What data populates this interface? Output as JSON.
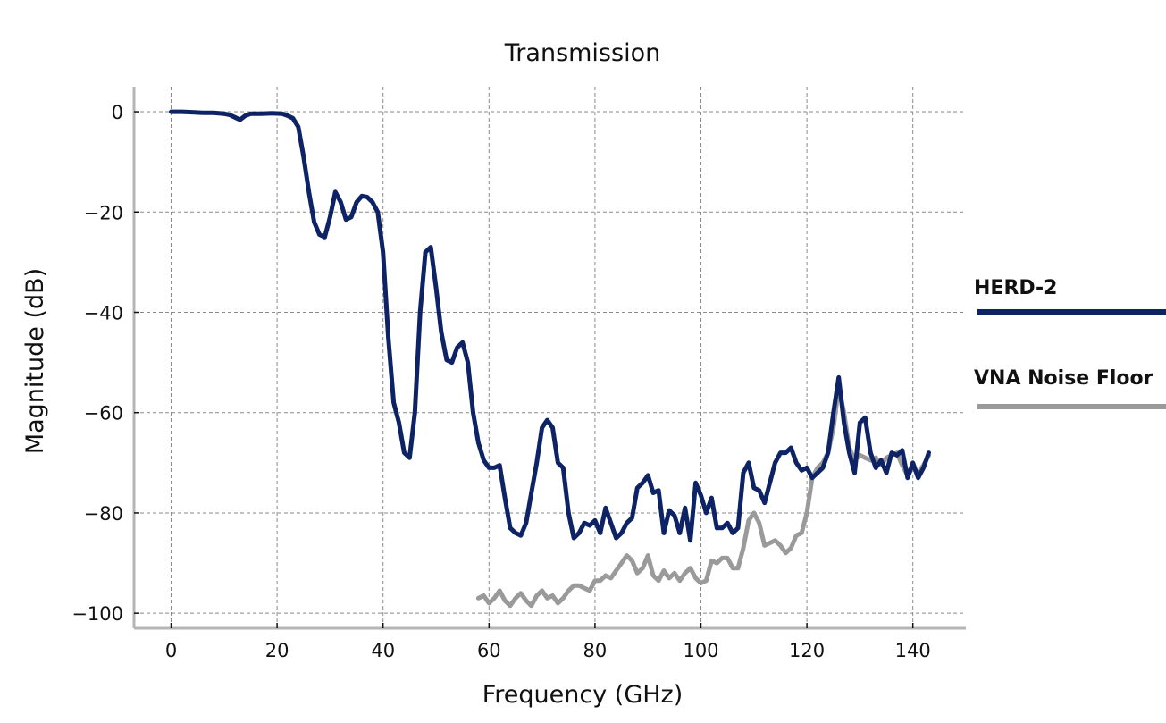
{
  "chart_data": {
    "type": "line",
    "title": "Transmission",
    "xlabel": "Frequency (GHz)",
    "ylabel": "Magnitude (dB)",
    "xlim": [
      -7,
      150
    ],
    "ylim": [
      -103,
      5
    ],
    "xticks": [
      0,
      20,
      40,
      60,
      80,
      100,
      120,
      140
    ],
    "yticks": [
      0,
      -20,
      -40,
      -60,
      -80,
      -100
    ],
    "xtick_labels": [
      "0",
      "20",
      "40",
      "60",
      "80",
      "100",
      "120",
      "140"
    ],
    "ytick_labels": [
      "0",
      "−20",
      "−40",
      "−60",
      "−80",
      "−100"
    ],
    "grid": true,
    "legend_position": "right",
    "series": [
      {
        "name": "VNA Noise Floor",
        "color": "#9a9a9a",
        "points": [
          [
            58,
            -97
          ],
          [
            59,
            -96.5
          ],
          [
            60,
            -98
          ],
          [
            61,
            -97
          ],
          [
            62,
            -95.5
          ],
          [
            63,
            -97.5
          ],
          [
            64,
            -98.5
          ],
          [
            65,
            -97
          ],
          [
            66,
            -96
          ],
          [
            67,
            -97.5
          ],
          [
            68,
            -98.5
          ],
          [
            69,
            -96.5
          ],
          [
            70,
            -95.5
          ],
          [
            71,
            -97
          ],
          [
            72,
            -96.5
          ],
          [
            73,
            -98
          ],
          [
            74,
            -97
          ],
          [
            75,
            -95.5
          ],
          [
            76,
            -94.5
          ],
          [
            77,
            -94.5
          ],
          [
            78,
            -95
          ],
          [
            79,
            -95.5
          ],
          [
            80,
            -93.5
          ],
          [
            81,
            -93.5
          ],
          [
            82,
            -92.5
          ],
          [
            83,
            -93
          ],
          [
            84,
            -91.5
          ],
          [
            85,
            -90
          ],
          [
            86,
            -88.5
          ],
          [
            87,
            -89.5
          ],
          [
            88,
            -92
          ],
          [
            89,
            -91
          ],
          [
            90,
            -88.5
          ],
          [
            91,
            -92.5
          ],
          [
            92,
            -93.5
          ],
          [
            93,
            -91.5
          ],
          [
            94,
            -93
          ],
          [
            95,
            -92
          ],
          [
            96,
            -93.5
          ],
          [
            97,
            -92
          ],
          [
            98,
            -91
          ],
          [
            99,
            -93
          ],
          [
            100,
            -94
          ],
          [
            101,
            -93.5
          ],
          [
            102,
            -89.5
          ],
          [
            103,
            -90
          ],
          [
            104,
            -89
          ],
          [
            105,
            -89
          ],
          [
            106,
            -91
          ],
          [
            107,
            -91
          ],
          [
            108,
            -87
          ],
          [
            109,
            -81.5
          ],
          [
            110,
            -80
          ],
          [
            111,
            -82
          ],
          [
            112,
            -86.5
          ],
          [
            113,
            -86
          ],
          [
            114,
            -85.5
          ],
          [
            115,
            -86.5
          ],
          [
            116,
            -88
          ],
          [
            117,
            -87
          ],
          [
            118,
            -84.5
          ],
          [
            119,
            -84
          ],
          [
            120,
            -80
          ],
          [
            121,
            -73
          ],
          [
            122,
            -71
          ],
          [
            123,
            -70
          ],
          [
            124,
            -68
          ],
          [
            125,
            -63
          ],
          [
            126,
            -55
          ],
          [
            127,
            -60
          ],
          [
            128,
            -67
          ],
          [
            129,
            -69.5
          ],
          [
            130,
            -68.5
          ],
          [
            131,
            -69
          ],
          [
            132,
            -69.5
          ],
          [
            133,
            -69
          ],
          [
            134,
            -70.5
          ],
          [
            135,
            -69
          ],
          [
            136,
            -68.5
          ],
          [
            137,
            -68
          ],
          [
            138,
            -70.5
          ],
          [
            139,
            -72.5
          ],
          [
            140,
            -71
          ],
          [
            141,
            -72
          ],
          [
            142,
            -70.5
          ],
          [
            143,
            -68.5
          ]
        ]
      },
      {
        "name": "HERD-2",
        "color": "#0d2366",
        "points": [
          [
            0,
            0
          ],
          [
            2,
            0
          ],
          [
            4,
            -0.1
          ],
          [
            6,
            -0.2
          ],
          [
            8,
            -0.2
          ],
          [
            10,
            -0.4
          ],
          [
            11,
            -0.6
          ],
          [
            12,
            -1.1
          ],
          [
            13,
            -1.6
          ],
          [
            14,
            -0.8
          ],
          [
            15,
            -0.4
          ],
          [
            17,
            -0.4
          ],
          [
            19,
            -0.3
          ],
          [
            21,
            -0.4
          ],
          [
            22,
            -0.8
          ],
          [
            23,
            -1.3
          ],
          [
            24,
            -3
          ],
          [
            25,
            -9
          ],
          [
            26,
            -16
          ],
          [
            27,
            -22
          ],
          [
            28,
            -24.5
          ],
          [
            29,
            -25
          ],
          [
            30,
            -21
          ],
          [
            31,
            -16
          ],
          [
            32,
            -18
          ],
          [
            33,
            -21.5
          ],
          [
            34,
            -21
          ],
          [
            35,
            -18
          ],
          [
            36,
            -16.8
          ],
          [
            37,
            -17
          ],
          [
            38,
            -18
          ],
          [
            39,
            -20
          ],
          [
            40,
            -28
          ],
          [
            41,
            -45
          ],
          [
            42,
            -58
          ],
          [
            43,
            -62
          ],
          [
            44,
            -68
          ],
          [
            45,
            -69
          ],
          [
            46,
            -60
          ],
          [
            47,
            -40
          ],
          [
            48,
            -28
          ],
          [
            49,
            -27
          ],
          [
            50,
            -35
          ],
          [
            51,
            -44
          ],
          [
            52,
            -49.5
          ],
          [
            53,
            -50
          ],
          [
            54,
            -47
          ],
          [
            55,
            -46
          ],
          [
            56,
            -50
          ],
          [
            57,
            -60
          ],
          [
            58,
            -66
          ],
          [
            59,
            -69.5
          ],
          [
            60,
            -71
          ],
          [
            61,
            -71
          ],
          [
            62,
            -70.5
          ],
          [
            63,
            -77
          ],
          [
            64,
            -83
          ],
          [
            65,
            -84
          ],
          [
            66,
            -84.5
          ],
          [
            67,
            -82
          ],
          [
            68,
            -76
          ],
          [
            69,
            -70
          ],
          [
            70,
            -63
          ],
          [
            71,
            -61.5
          ],
          [
            72,
            -63
          ],
          [
            73,
            -70
          ],
          [
            74,
            -71
          ],
          [
            75,
            -80
          ],
          [
            76,
            -85
          ],
          [
            77,
            -84
          ],
          [
            78,
            -82
          ],
          [
            79,
            -82.5
          ],
          [
            80,
            -81.5
          ],
          [
            81,
            -84
          ],
          [
            82,
            -79
          ],
          [
            83,
            -82
          ],
          [
            84,
            -85
          ],
          [
            85,
            -84
          ],
          [
            86,
            -82
          ],
          [
            87,
            -81
          ],
          [
            88,
            -75
          ],
          [
            89,
            -74
          ],
          [
            90,
            -72.5
          ],
          [
            91,
            -76
          ],
          [
            92,
            -75.5
          ],
          [
            93,
            -84
          ],
          [
            94,
            -79.5
          ],
          [
            95,
            -80.5
          ],
          [
            96,
            -84
          ],
          [
            97,
            -79
          ],
          [
            98,
            -85.5
          ],
          [
            99,
            -74
          ],
          [
            100,
            -76.5
          ],
          [
            101,
            -80
          ],
          [
            102,
            -77
          ],
          [
            103,
            -83
          ],
          [
            104,
            -83
          ],
          [
            105,
            -82
          ],
          [
            106,
            -84
          ],
          [
            107,
            -83
          ],
          [
            108,
            -72
          ],
          [
            109,
            -70
          ],
          [
            110,
            -75
          ],
          [
            111,
            -75.5
          ],
          [
            112,
            -78
          ],
          [
            113,
            -74
          ],
          [
            114,
            -70
          ],
          [
            115,
            -68
          ],
          [
            116,
            -68
          ],
          [
            117,
            -67
          ],
          [
            118,
            -70
          ],
          [
            119,
            -71.5
          ],
          [
            120,
            -71
          ],
          [
            121,
            -73
          ],
          [
            122,
            -72
          ],
          [
            123,
            -71
          ],
          [
            124,
            -68
          ],
          [
            125,
            -60
          ],
          [
            126,
            -53
          ],
          [
            127,
            -62
          ],
          [
            128,
            -68
          ],
          [
            129,
            -72
          ],
          [
            130,
            -62
          ],
          [
            131,
            -61
          ],
          [
            132,
            -68
          ],
          [
            133,
            -71
          ],
          [
            134,
            -69.5
          ],
          [
            135,
            -72
          ],
          [
            136,
            -68
          ],
          [
            137,
            -68.5
          ],
          [
            138,
            -67.5
          ],
          [
            139,
            -73
          ],
          [
            140,
            -70
          ],
          [
            141,
            -73
          ],
          [
            142,
            -71
          ],
          [
            143,
            -68
          ]
        ]
      }
    ]
  }
}
